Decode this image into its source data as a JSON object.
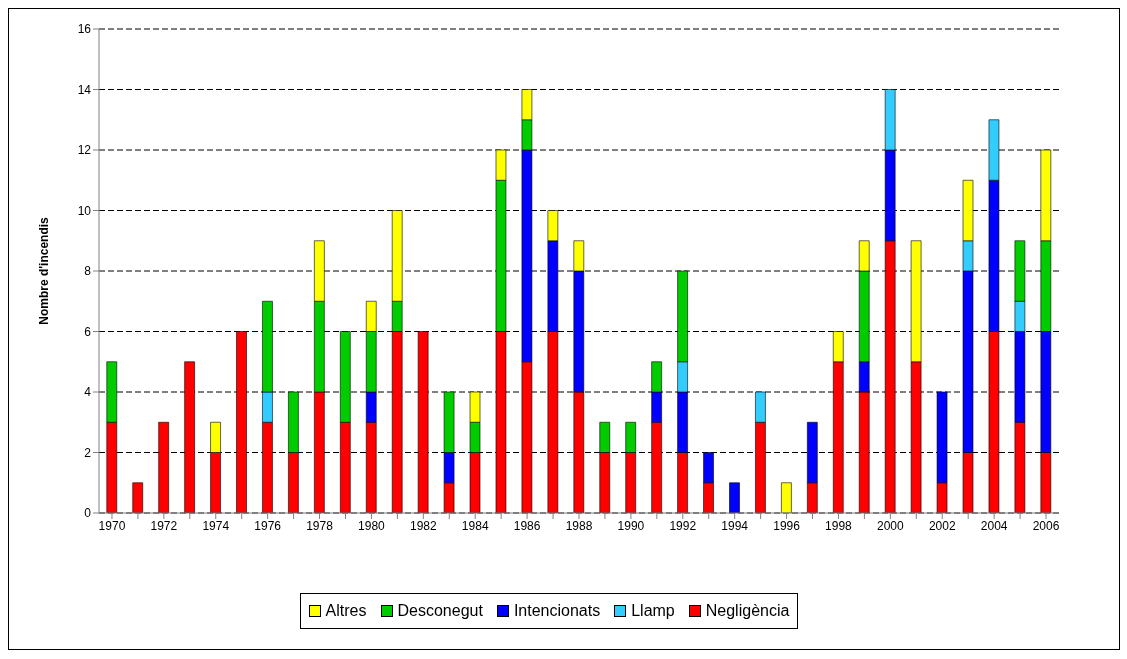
{
  "chart_data": {
    "type": "bar",
    "stacked": true,
    "ylabel": "Nombre d'incendis",
    "categories": [
      "1970",
      null,
      "1972",
      null,
      "1974",
      null,
      "1976",
      null,
      "1978",
      null,
      "1980",
      null,
      "1982",
      null,
      "1984",
      null,
      "1986",
      null,
      "1988",
      null,
      "1990",
      null,
      "1992",
      null,
      "1994",
      null,
      "1996",
      null,
      "1998",
      null,
      "2000",
      null,
      "2002",
      null,
      "2004",
      null,
      "2006"
    ],
    "series": [
      {
        "name": "Negligència",
        "color": "#ff0000",
        "values": [
          3,
          1,
          3,
          5,
          2,
          6,
          3,
          2,
          4,
          3,
          3,
          6,
          6,
          1,
          2,
          6,
          5,
          6,
          4,
          2,
          2,
          3,
          2,
          1,
          0,
          3,
          0,
          1,
          5,
          4,
          9,
          5,
          1,
          2,
          6,
          3,
          2
        ]
      },
      {
        "name": "Intencionats",
        "color": "#0000ff",
        "values": [
          0,
          0,
          0,
          0,
          0,
          0,
          0,
          0,
          0,
          0,
          1,
          0,
          0,
          1,
          0,
          0,
          7,
          3,
          4,
          0,
          0,
          1,
          2,
          1,
          1,
          0,
          0,
          2,
          0,
          1,
          3,
          0,
          3,
          6,
          5,
          3,
          4
        ]
      },
      {
        "name": "Llamp",
        "color": "#33ccff",
        "values": [
          0,
          0,
          0,
          0,
          0,
          0,
          1,
          0,
          0,
          0,
          0,
          0,
          0,
          0,
          0,
          0,
          0,
          0,
          0,
          0,
          0,
          0,
          1,
          0,
          0,
          1,
          0,
          0,
          0,
          0,
          2,
          0,
          0,
          1,
          2,
          1,
          0
        ]
      },
      {
        "name": "Desconegut",
        "color": "#00cc00",
        "values": [
          2,
          0,
          0,
          0,
          0,
          0,
          3,
          2,
          3,
          3,
          2,
          1,
          0,
          2,
          1,
          5,
          1,
          0,
          0,
          1,
          1,
          1,
          3,
          0,
          0,
          0,
          0,
          0,
          0,
          3,
          0,
          0,
          0,
          0,
          0,
          2,
          3
        ]
      },
      {
        "name": "Altres",
        "color": "#ffff00",
        "values": [
          0,
          0,
          0,
          0,
          1,
          0,
          0,
          0,
          2,
          0,
          1,
          3,
          0,
          0,
          1,
          1,
          1,
          1,
          1,
          0,
          0,
          0,
          0,
          0,
          0,
          0,
          1,
          0,
          1,
          1,
          0,
          4,
          0,
          2,
          0,
          0,
          3
        ]
      }
    ],
    "ylim": [
      0,
      16
    ],
    "yticks": [
      0,
      2,
      4,
      6,
      8,
      10,
      12,
      14,
      16
    ],
    "grid": "y",
    "legend": "bottom"
  }
}
